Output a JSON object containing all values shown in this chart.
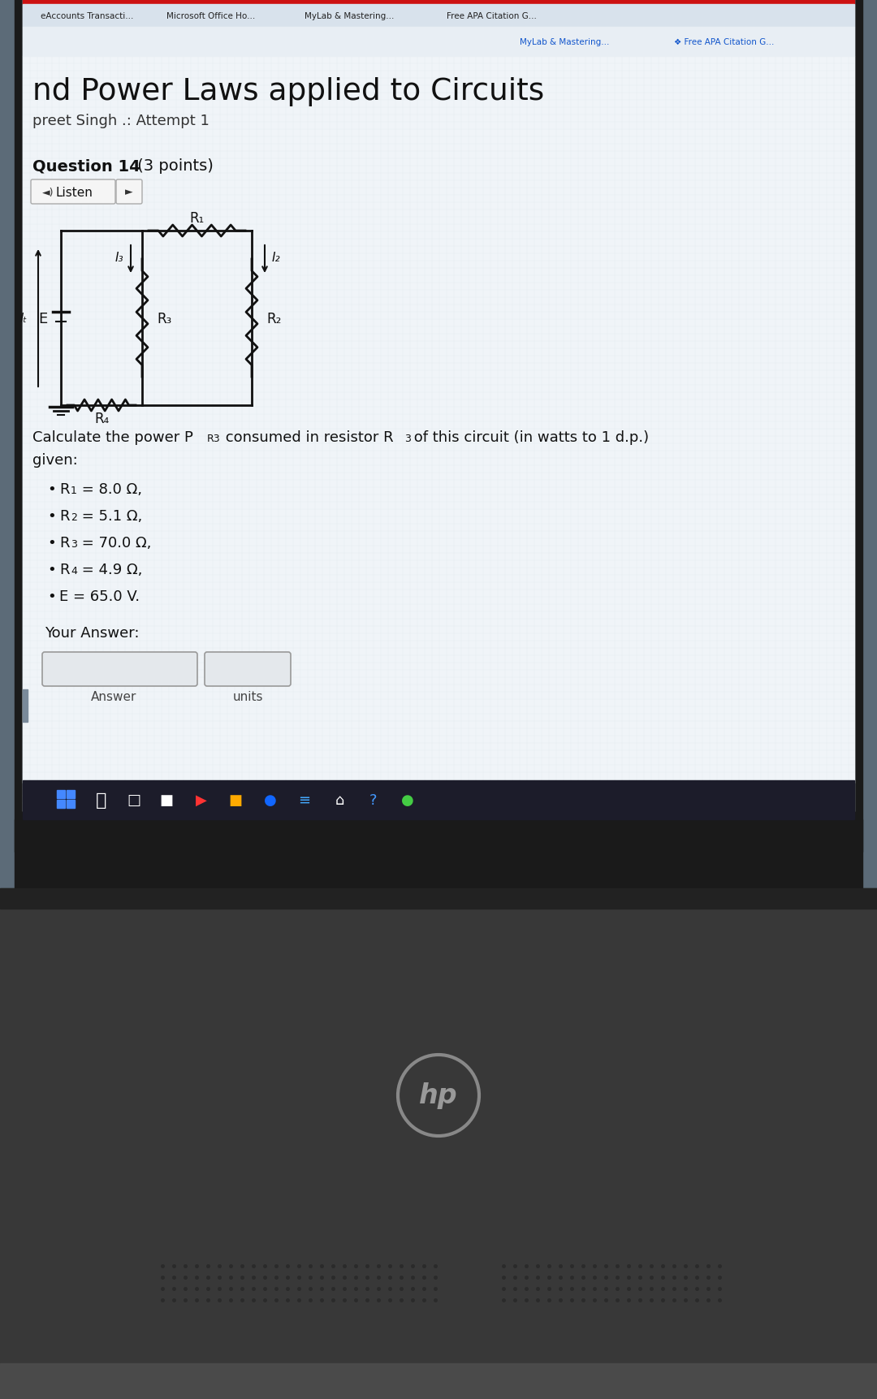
{
  "browser_tabs": [
    "eAccounts Transacti...",
    "Microsoft Office Ho...",
    "MyLab & Mastering...",
    "Free APA Citation G..."
  ],
  "page_title": "nd Power Laws applied to Circuits",
  "subtitle": "preet Singh .: Attempt 1",
  "question_bold": "Question 14",
  "question_normal": " (3 points)",
  "listen_btn": "Listen",
  "problem_line1": "Calculate the power P",
  "problem_sub1": "R3",
  "problem_line2": " consumed in resistor R",
  "problem_sub2": "3",
  "problem_line3": " of this circuit (in watts to 1 d.p.)",
  "given_label": "given:",
  "bullets": [
    [
      "R",
      "1",
      " = 8.0 Ω,"
    ],
    [
      "R",
      "2",
      " = 5.1 Ω,"
    ],
    [
      "R",
      "3",
      " = 70.0 Ω,"
    ],
    [
      "R",
      "4",
      " = 4.9 Ω,"
    ],
    [
      "E = 65.0 V.",
      "",
      ""
    ]
  ],
  "your_answer_label": "Your Answer:",
  "answer_label": "Answer",
  "units_label": "units",
  "screen_bg": "#cdd9e5",
  "content_bg": "#dce8f2",
  "red_bar": "#cc1111",
  "taskbar_bg": "#1c1c2a",
  "laptop_body": "#383838",
  "laptop_bottom": "#2a2a2a",
  "hp_color": "#999999",
  "text_dark": "#111111",
  "text_mid": "#333333",
  "grid_color": "#bccad6",
  "tab_bg": "#d8e2ec",
  "browser_bg": "#e8eef4"
}
